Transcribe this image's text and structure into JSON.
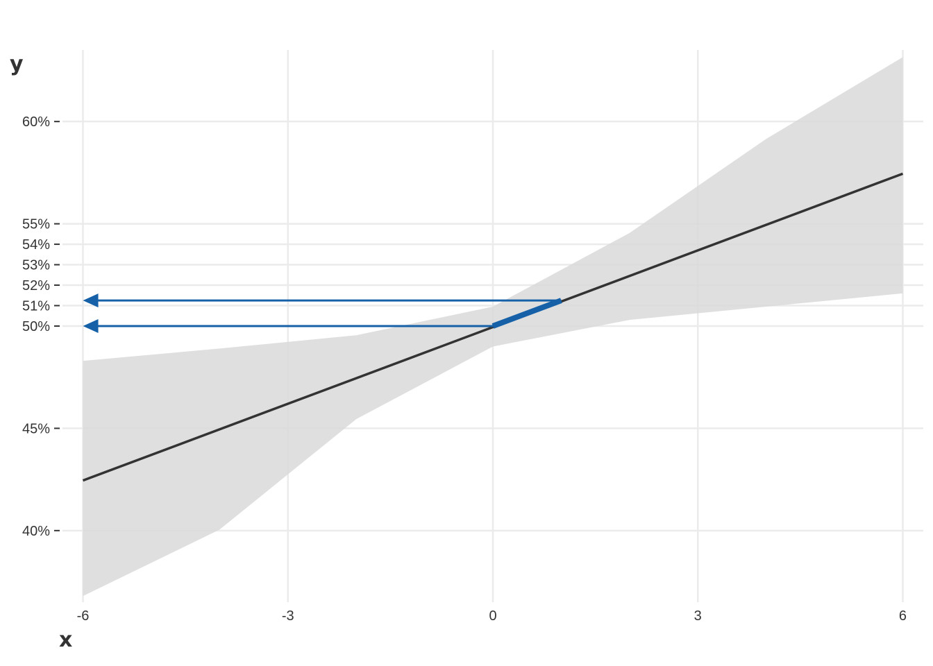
{
  "chart_data": {
    "type": "line",
    "xlabel": "x",
    "ylabel": "y",
    "xlim": [
      -6.3,
      6.3
    ],
    "ylim": [
      0.365,
      0.635
    ],
    "x_ticks": [
      -6,
      -3,
      0,
      3,
      6
    ],
    "x_tick_labels": [
      "-6",
      "-3",
      "0",
      "3",
      "6"
    ],
    "y_ticks": [
      0.4,
      0.45,
      0.5,
      0.51,
      0.52,
      0.53,
      0.54,
      0.55,
      0.6
    ],
    "y_tick_labels": [
      "40%",
      "45%",
      "50%",
      "51%",
      "52%",
      "53%",
      "54%",
      "55%",
      "60%"
    ],
    "grid": true,
    "series": [
      {
        "x": [
          -6,
          6
        ],
        "y": [
          0.4245,
          0.5745
        ],
        "color": "#333333"
      }
    ],
    "confidence_band": {
      "x": [
        -6,
        -4,
        -2,
        0,
        2,
        4,
        6
      ],
      "lower": [
        0.368,
        0.4005,
        0.4545,
        0.49,
        0.503,
        0.5095,
        0.516
      ],
      "upper": [
        0.483,
        0.489,
        0.4955,
        0.5095,
        0.5455,
        0.5915,
        0.6315
      ],
      "color": "#d9d9d9"
    },
    "annotations": [
      {
        "type": "segment-highlight",
        "x": [
          0,
          1
        ],
        "y": [
          0.5,
          0.5125
        ],
        "color": "#1660a8"
      },
      {
        "type": "arrow",
        "from": [
          1,
          0.5125
        ],
        "to": [
          -6,
          0.5125
        ],
        "color": "#1660a8"
      },
      {
        "type": "arrow",
        "from": [
          0,
          0.5
        ],
        "to": [
          -6,
          0.5
        ],
        "color": "#1660a8"
      }
    ]
  }
}
